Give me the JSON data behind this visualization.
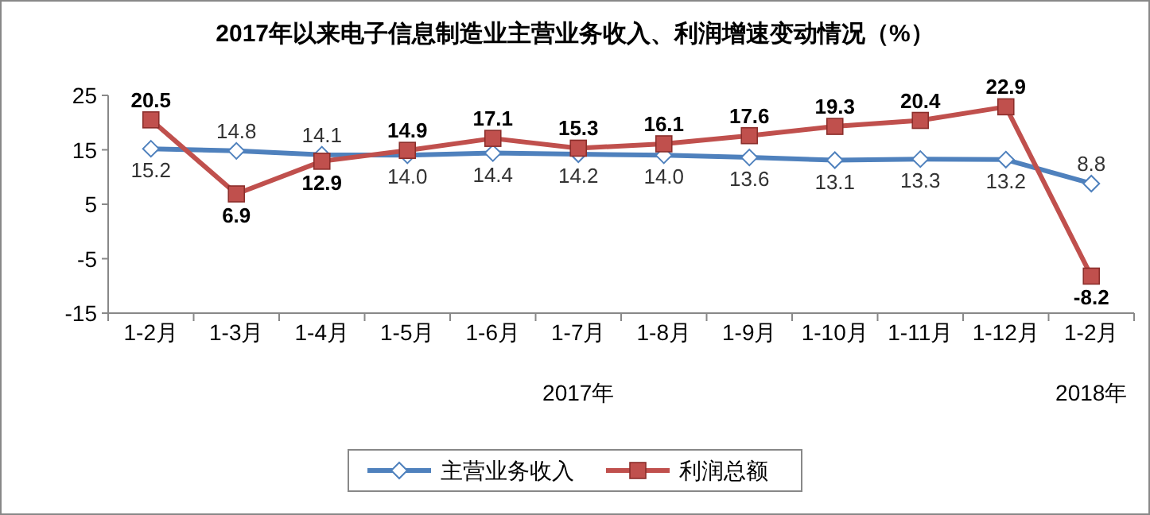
{
  "chart_data": {
    "type": "line",
    "title": "2017年以来电子信息制造业主营业务收入、利润增速变动情况（%）",
    "categories": [
      "1-2月",
      "1-3月",
      "1-4月",
      "1-5月",
      "1-6月",
      "1-7月",
      "1-8月",
      "1-9月",
      "1-10月",
      "1-11月",
      "1-12月",
      "1-2月"
    ],
    "series": [
      {
        "name": "主营业务收入",
        "color": "#4f81bd",
        "marker": "diamond",
        "values": [
          15.2,
          14.8,
          14.1,
          14.0,
          14.4,
          14.2,
          14.0,
          13.6,
          13.1,
          13.3,
          13.2,
          8.8
        ],
        "value_labels": [
          "15.2",
          "14.8",
          "14.1",
          "14.0",
          "14.4",
          "14.2",
          "14.0",
          "13.6",
          "13.1",
          "13.3",
          "13.2",
          "8.8"
        ]
      },
      {
        "name": "利润总额",
        "color": "#c0504d",
        "marker": "square",
        "values": [
          20.5,
          6.9,
          12.9,
          14.9,
          17.1,
          15.3,
          16.1,
          17.6,
          19.3,
          20.4,
          22.9,
          -8.2
        ],
        "value_labels": [
          "20.5",
          "6.9",
          "12.9",
          "14.9",
          "17.1",
          "15.3",
          "16.1",
          "17.6",
          "19.3",
          "20.4",
          "22.9",
          "-8.2"
        ]
      }
    ],
    "ylim": [
      -15,
      25
    ],
    "yticks": [
      -15,
      -5,
      5,
      15,
      25
    ],
    "grid": false,
    "legend": "bottom",
    "annotations": [
      "2017年",
      "2018年"
    ]
  }
}
